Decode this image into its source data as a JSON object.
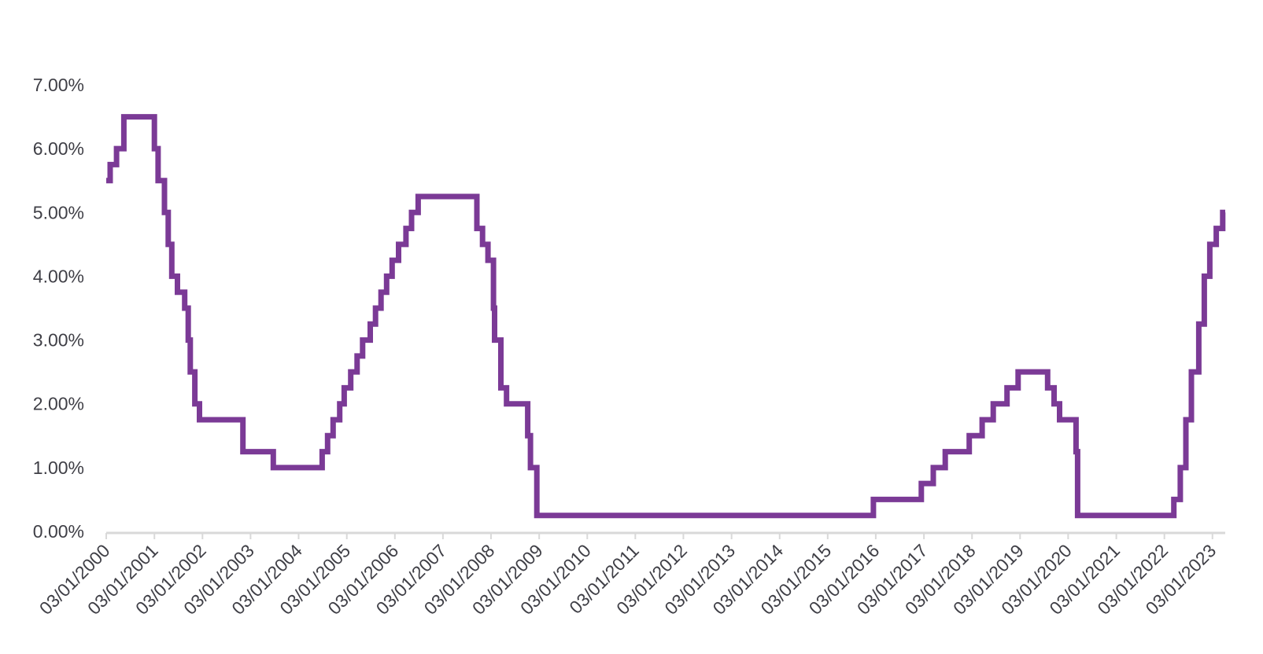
{
  "chart_data": {
    "type": "line",
    "step": true,
    "title": "",
    "xlabel": "",
    "ylabel": "",
    "grid": false,
    "legend": "none",
    "line_color": "#7b3a96",
    "axis_color": "#d9d9d9",
    "text_color": "#3f3f46",
    "ylim": [
      0,
      7
    ],
    "xlim": [
      "2000-01-03",
      "2023-04-10"
    ],
    "y_tick_labels": [
      "0.00%",
      "1.00%",
      "2.00%",
      "3.00%",
      "4.00%",
      "5.00%",
      "6.00%",
      "7.00%"
    ],
    "x_tick_labels": [
      "03/01/2000",
      "03/01/2001",
      "03/01/2002",
      "03/01/2003",
      "03/01/2004",
      "03/01/2005",
      "03/01/2006",
      "03/01/2007",
      "03/01/2008",
      "03/01/2009",
      "03/01/2010",
      "03/01/2011",
      "03/01/2012",
      "03/01/2013",
      "03/01/2014",
      "03/01/2015",
      "03/01/2016",
      "03/01/2017",
      "03/01/2018",
      "03/01/2019",
      "03/01/2020",
      "03/01/2021",
      "03/01/2022",
      "03/01/2023"
    ],
    "x_tick_dates": [
      "2000-01-03",
      "2001-01-03",
      "2002-01-03",
      "2003-01-03",
      "2004-01-03",
      "2005-01-03",
      "2006-01-03",
      "2007-01-03",
      "2008-01-03",
      "2009-01-03",
      "2010-01-03",
      "2011-01-03",
      "2012-01-03",
      "2013-01-03",
      "2014-01-03",
      "2015-01-03",
      "2016-01-03",
      "2017-01-03",
      "2018-01-03",
      "2019-01-03",
      "2020-01-03",
      "2021-01-03",
      "2022-01-03",
      "2023-01-03"
    ],
    "series": [
      {
        "color": "#7b3a96",
        "x": [
          "2000-01-03",
          "2000-02-02",
          "2000-03-21",
          "2000-05-16",
          "2001-01-03",
          "2001-01-31",
          "2001-03-20",
          "2001-04-18",
          "2001-05-15",
          "2001-06-27",
          "2001-08-21",
          "2001-09-17",
          "2001-10-02",
          "2001-11-06",
          "2001-12-11",
          "2002-11-06",
          "2003-06-25",
          "2004-06-30",
          "2004-08-10",
          "2004-09-21",
          "2004-11-10",
          "2004-12-14",
          "2005-02-02",
          "2005-03-22",
          "2005-05-03",
          "2005-06-30",
          "2005-08-09",
          "2005-09-20",
          "2005-11-01",
          "2005-12-13",
          "2006-01-31",
          "2006-03-28",
          "2006-05-10",
          "2006-06-29",
          "2007-09-18",
          "2007-10-31",
          "2007-12-11",
          "2008-01-22",
          "2008-01-30",
          "2008-03-18",
          "2008-04-30",
          "2008-10-08",
          "2008-10-29",
          "2008-12-16",
          "2015-12-16",
          "2016-12-14",
          "2017-03-15",
          "2017-06-14",
          "2017-12-13",
          "2018-03-21",
          "2018-06-13",
          "2018-09-26",
          "2018-12-19",
          "2019-07-31",
          "2019-09-18",
          "2019-10-30",
          "2020-03-03",
          "2020-03-15",
          "2022-03-16",
          "2022-05-04",
          "2022-06-15",
          "2022-07-27",
          "2022-09-21",
          "2022-11-02",
          "2022-12-14",
          "2023-02-01",
          "2023-03-22",
          "2023-04-10"
        ],
        "y": [
          5.5,
          5.75,
          6.0,
          6.5,
          6.0,
          5.5,
          5.0,
          4.5,
          4.0,
          3.75,
          3.5,
          3.0,
          2.5,
          2.0,
          1.75,
          1.25,
          1.0,
          1.25,
          1.5,
          1.75,
          2.0,
          2.25,
          2.5,
          2.75,
          3.0,
          3.25,
          3.5,
          3.75,
          4.0,
          4.25,
          4.5,
          4.75,
          5.0,
          5.25,
          4.75,
          4.5,
          4.25,
          3.5,
          3.0,
          2.25,
          2.0,
          1.5,
          1.0,
          0.25,
          0.5,
          0.75,
          1.0,
          1.25,
          1.5,
          1.75,
          2.0,
          2.25,
          2.5,
          2.25,
          2.0,
          1.75,
          1.25,
          0.25,
          0.5,
          1.0,
          1.75,
          2.5,
          3.25,
          4.0,
          4.5,
          4.75,
          5.0,
          5.0
        ]
      }
    ]
  }
}
